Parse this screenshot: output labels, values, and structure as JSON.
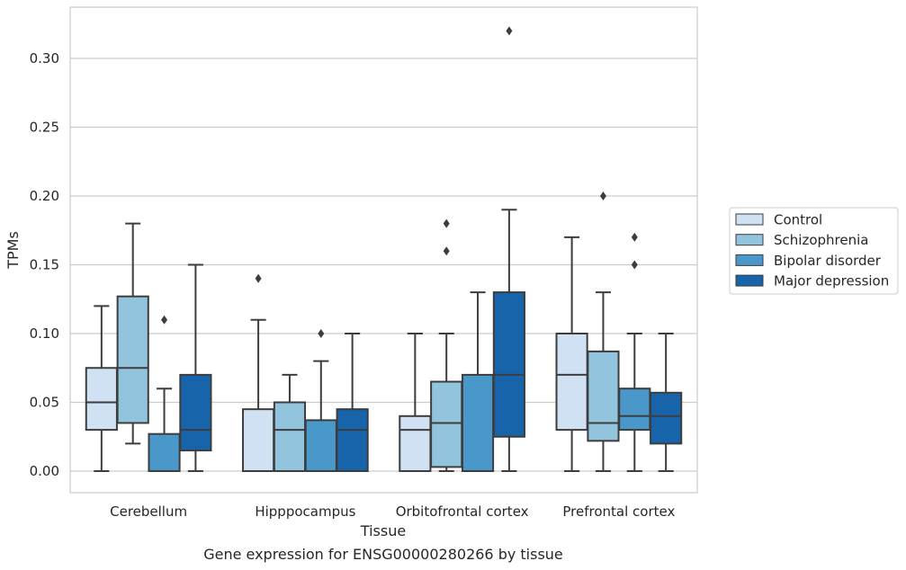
{
  "chart_data": {
    "type": "box",
    "title": "",
    "caption": "Gene expression for ENSG00000280266 by tissue",
    "xlabel": "Tissue",
    "ylabel": "TPMs",
    "ylim": [
      -0.016,
      0.336
    ],
    "yticks": [
      0.0,
      0.05,
      0.1,
      0.15,
      0.2,
      0.25,
      0.3
    ],
    "ytick_labels": [
      "0.00",
      "0.05",
      "0.10",
      "0.15",
      "0.20",
      "0.25",
      "0.30"
    ],
    "grid": "horizontal",
    "legend_placement": "right, outside plot",
    "categories": [
      "Cerebellum",
      "Hipppocampus",
      "Orbitofrontal cortex",
      "Prefrontal cortex"
    ],
    "series": [
      {
        "name": "Control",
        "color": "#cfe1f2",
        "boxes": [
          {
            "whislo": 0.0,
            "q1": 0.03,
            "med": 0.05,
            "q3": 0.075,
            "whishi": 0.12,
            "fliers": []
          },
          {
            "whislo": 0.0,
            "q1": 0.0,
            "med": 0.0,
            "q3": 0.045,
            "whishi": 0.11,
            "fliers": [
              0.14
            ]
          },
          {
            "whislo": 0.0,
            "q1": 0.0,
            "med": 0.03,
            "q3": 0.04,
            "whishi": 0.1,
            "fliers": []
          },
          {
            "whislo": 0.0,
            "q1": 0.03,
            "med": 0.07,
            "q3": 0.1,
            "whishi": 0.17,
            "fliers": []
          }
        ]
      },
      {
        "name": "Schizophrenia",
        "color": "#93c4de",
        "boxes": [
          {
            "whislo": 0.02,
            "q1": 0.035,
            "med": 0.075,
            "q3": 0.127,
            "whishi": 0.18,
            "fliers": []
          },
          {
            "whislo": 0.0,
            "q1": 0.0,
            "med": 0.03,
            "q3": 0.05,
            "whishi": 0.07,
            "fliers": []
          },
          {
            "whislo": 0.0,
            "q1": 0.003,
            "med": 0.035,
            "q3": 0.065,
            "whishi": 0.1,
            "fliers": [
              0.16,
              0.18
            ]
          },
          {
            "whislo": 0.0,
            "q1": 0.022,
            "med": 0.035,
            "q3": 0.087,
            "whishi": 0.13,
            "fliers": [
              0.2
            ]
          }
        ]
      },
      {
        "name": "Bipolar disorder",
        "color": "#4a98c9",
        "boxes": [
          {
            "whislo": 0.0,
            "q1": 0.0,
            "med": 0.0,
            "q3": 0.027,
            "whishi": 0.06,
            "fliers": [
              0.11
            ]
          },
          {
            "whislo": 0.0,
            "q1": 0.0,
            "med": 0.0,
            "q3": 0.037,
            "whishi": 0.08,
            "fliers": [
              0.1
            ]
          },
          {
            "whislo": 0.0,
            "q1": 0.0,
            "med": 0.0,
            "q3": 0.07,
            "whishi": 0.13,
            "fliers": []
          },
          {
            "whislo": 0.0,
            "q1": 0.03,
            "med": 0.04,
            "q3": 0.06,
            "whishi": 0.1,
            "fliers": [
              0.15,
              0.17
            ]
          }
        ]
      },
      {
        "name": "Major depression",
        "color": "#1764ab",
        "boxes": [
          {
            "whislo": 0.0,
            "q1": 0.015,
            "med": 0.03,
            "q3": 0.07,
            "whishi": 0.15,
            "fliers": []
          },
          {
            "whislo": 0.0,
            "q1": 0.0,
            "med": 0.03,
            "q3": 0.045,
            "whishi": 0.1,
            "fliers": []
          },
          {
            "whislo": 0.0,
            "q1": 0.025,
            "med": 0.07,
            "q3": 0.13,
            "whishi": 0.19,
            "fliers": [
              0.32
            ]
          },
          {
            "whislo": 0.0,
            "q1": 0.02,
            "med": 0.04,
            "q3": 0.057,
            "whishi": 0.1,
            "fliers": []
          }
        ]
      }
    ]
  }
}
